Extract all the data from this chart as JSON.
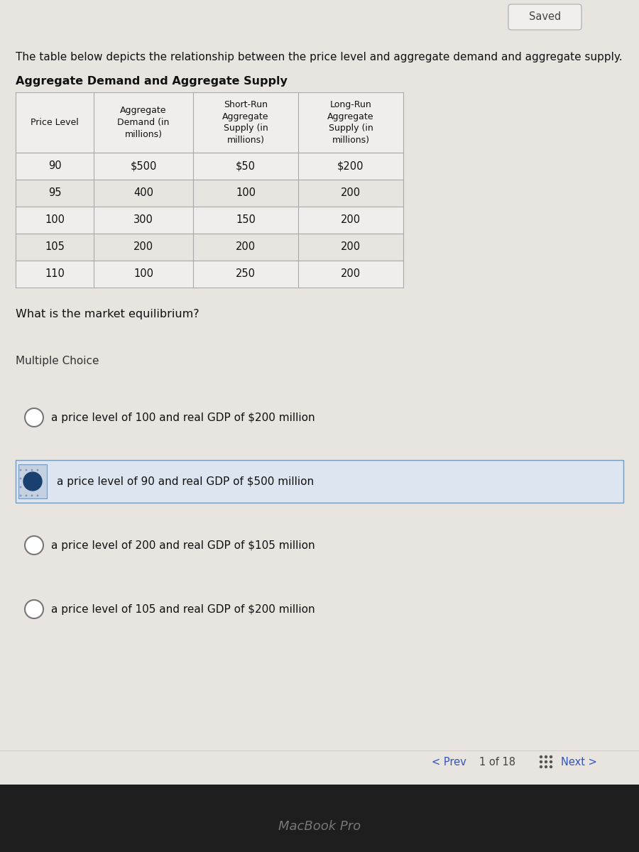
{
  "saved_label": "Saved",
  "intro_text": "The table below depicts the relationship between the price level and aggregate demand and aggregate supply.",
  "table_title": "Aggregate Demand and Aggregate Supply",
  "col_headers": [
    "Price Level",
    "Aggregate\nDemand (in\nmillions)",
    "Short-Run\nAggregate\nSupply (in\nmillions)",
    "Long-Run\nAggregate\nSupply (in\nmillions)"
  ],
  "table_data": [
    [
      "90",
      "$500",
      "$50",
      "$200"
    ],
    [
      "95",
      "400",
      "100",
      "200"
    ],
    [
      "100",
      "300",
      "150",
      "200"
    ],
    [
      "105",
      "200",
      "200",
      "200"
    ],
    [
      "110",
      "100",
      "250",
      "200"
    ]
  ],
  "question": "What is the market equilibrium?",
  "section_label": "Multiple Choice",
  "choices": [
    "a price level of 100 and real GDP of $200 million",
    "a price level of 90 and real GDP of $500 million",
    "a price level of 200 and real GDP of $105 million",
    "a price level of 105 and real GDP of $200 million"
  ],
  "selected_choice": 1,
  "footer_text": "MacBook Pro",
  "bg_main": "#e2ddd8",
  "bg_content": "#e8e4df",
  "bg_footer": "#1e1e1e",
  "bg_table_header": "#f0eeec",
  "bg_table_row_even": "#f0eeec",
  "bg_table_row_odd": "#e8e4e0",
  "table_border_color": "#aaaaaa",
  "selected_bg": "#dde5f0",
  "selected_border": "#7799bb",
  "selected_icon_bg": "#c5d0e0",
  "circle_selected_fill": "#1a4070",
  "circle_empty_edge": "#777777"
}
